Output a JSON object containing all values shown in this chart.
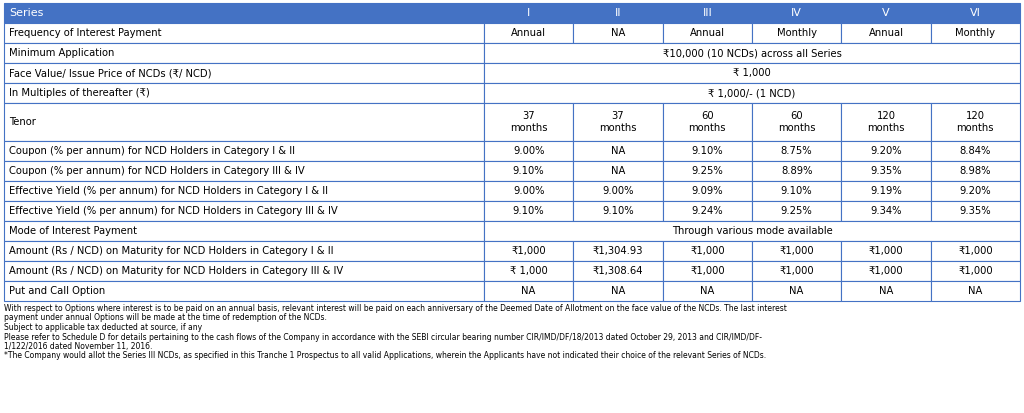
{
  "header_bg": "#4472C4",
  "header_text_color": "#FFFFFF",
  "border_color": "#4472C4",
  "text_color": "#000000",
  "white_bg": "#FFFFFF",
  "col_labels": [
    "Series",
    "I",
    "II",
    "III",
    "IV",
    "V",
    "VI"
  ],
  "rows": [
    {
      "label": "Frequency of Interest Payment",
      "values": [
        "Annual",
        "NA",
        "Annual",
        "Monthly",
        "Annual",
        "Monthly"
      ],
      "span": false,
      "tall": false
    },
    {
      "label": "Minimum Application",
      "values": [
        "₹10,000 (10 NCDs) across all Series"
      ],
      "span": true,
      "tall": false
    },
    {
      "label": "Face Value/ Issue Price of NCDs (₹/ NCD)",
      "values": [
        "₹ 1,000"
      ],
      "span": true,
      "tall": false
    },
    {
      "label": "In Multiples of thereafter (₹)",
      "values": [
        "₹ 1,000/- (1 NCD)"
      ],
      "span": true,
      "tall": false
    },
    {
      "label": "Tenor",
      "values": [
        "37\nmonths",
        "37\nmonths",
        "60\nmonths",
        "60\nmonths",
        "120\nmonths",
        "120\nmonths"
      ],
      "span": false,
      "tall": true
    },
    {
      "label": "Coupon (% per annum) for NCD Holders in Category I & II",
      "values": [
        "9.00%",
        "NA",
        "9.10%",
        "8.75%",
        "9.20%",
        "8.84%"
      ],
      "span": false,
      "tall": false
    },
    {
      "label": "Coupon (% per annum) for NCD Holders in Category III & IV",
      "values": [
        "9.10%",
        "NA",
        "9.25%",
        "8.89%",
        "9.35%",
        "8.98%"
      ],
      "span": false,
      "tall": false
    },
    {
      "label": "Effective Yield (% per annum) for NCD Holders in Category I & II",
      "values": [
        "9.00%",
        "9.00%",
        "9.09%",
        "9.10%",
        "9.19%",
        "9.20%"
      ],
      "span": false,
      "tall": false
    },
    {
      "label": "Effective Yield (% per annum) for NCD Holders in Category III & IV",
      "values": [
        "9.10%",
        "9.10%",
        "9.24%",
        "9.25%",
        "9.34%",
        "9.35%"
      ],
      "span": false,
      "tall": false
    },
    {
      "label": "Mode of Interest Payment",
      "values": [
        "Through various mode available"
      ],
      "span": true,
      "tall": false
    },
    {
      "label": "Amount (Rs / NCD) on Maturity for NCD Holders in Category I & II",
      "values": [
        "₹1,000",
        "₹1,304.93",
        "₹1,000",
        "₹1,000",
        "₹1,000",
        "₹1,000"
      ],
      "span": false,
      "tall": false
    },
    {
      "label": "Amount (Rs / NCD) on Maturity for NCD Holders in Category III & IV",
      "values": [
        "₹ 1,000",
        "₹1,308.64",
        "₹1,000",
        "₹1,000",
        "₹1,000",
        "₹1,000"
      ],
      "span": false,
      "tall": false
    },
    {
      "label": "Put and Call Option",
      "values": [
        "NA",
        "NA",
        "NA",
        "NA",
        "NA",
        "NA"
      ],
      "span": false,
      "tall": false
    }
  ],
  "footnotes": [
    "With respect to Options where interest is to be paid on an annual basis, relevant interest will be paid on each anniversary of the Deemed Date of Allotment on the face value of the NCDs. The last interest",
    "payment under annual Options will be made at the time of redemption of the NCDs.",
    "Subject to applicable tax deducted at source, if any",
    "Please refer to Schedule D for details pertaining to the cash flows of the Company in accordance with the SEBI circular bearing number CIR/IMD/DF/18/2013 dated October 29, 2013 and CIR/IMD/DF-",
    "1/122/2016 dated November 11, 2016.",
    "*The Company would allot the Series III NCDs, as specified in this Tranche 1 Prospectus to all valid Applications, wherein the Applicants have not indicated their choice of the relevant Series of NCDs."
  ]
}
